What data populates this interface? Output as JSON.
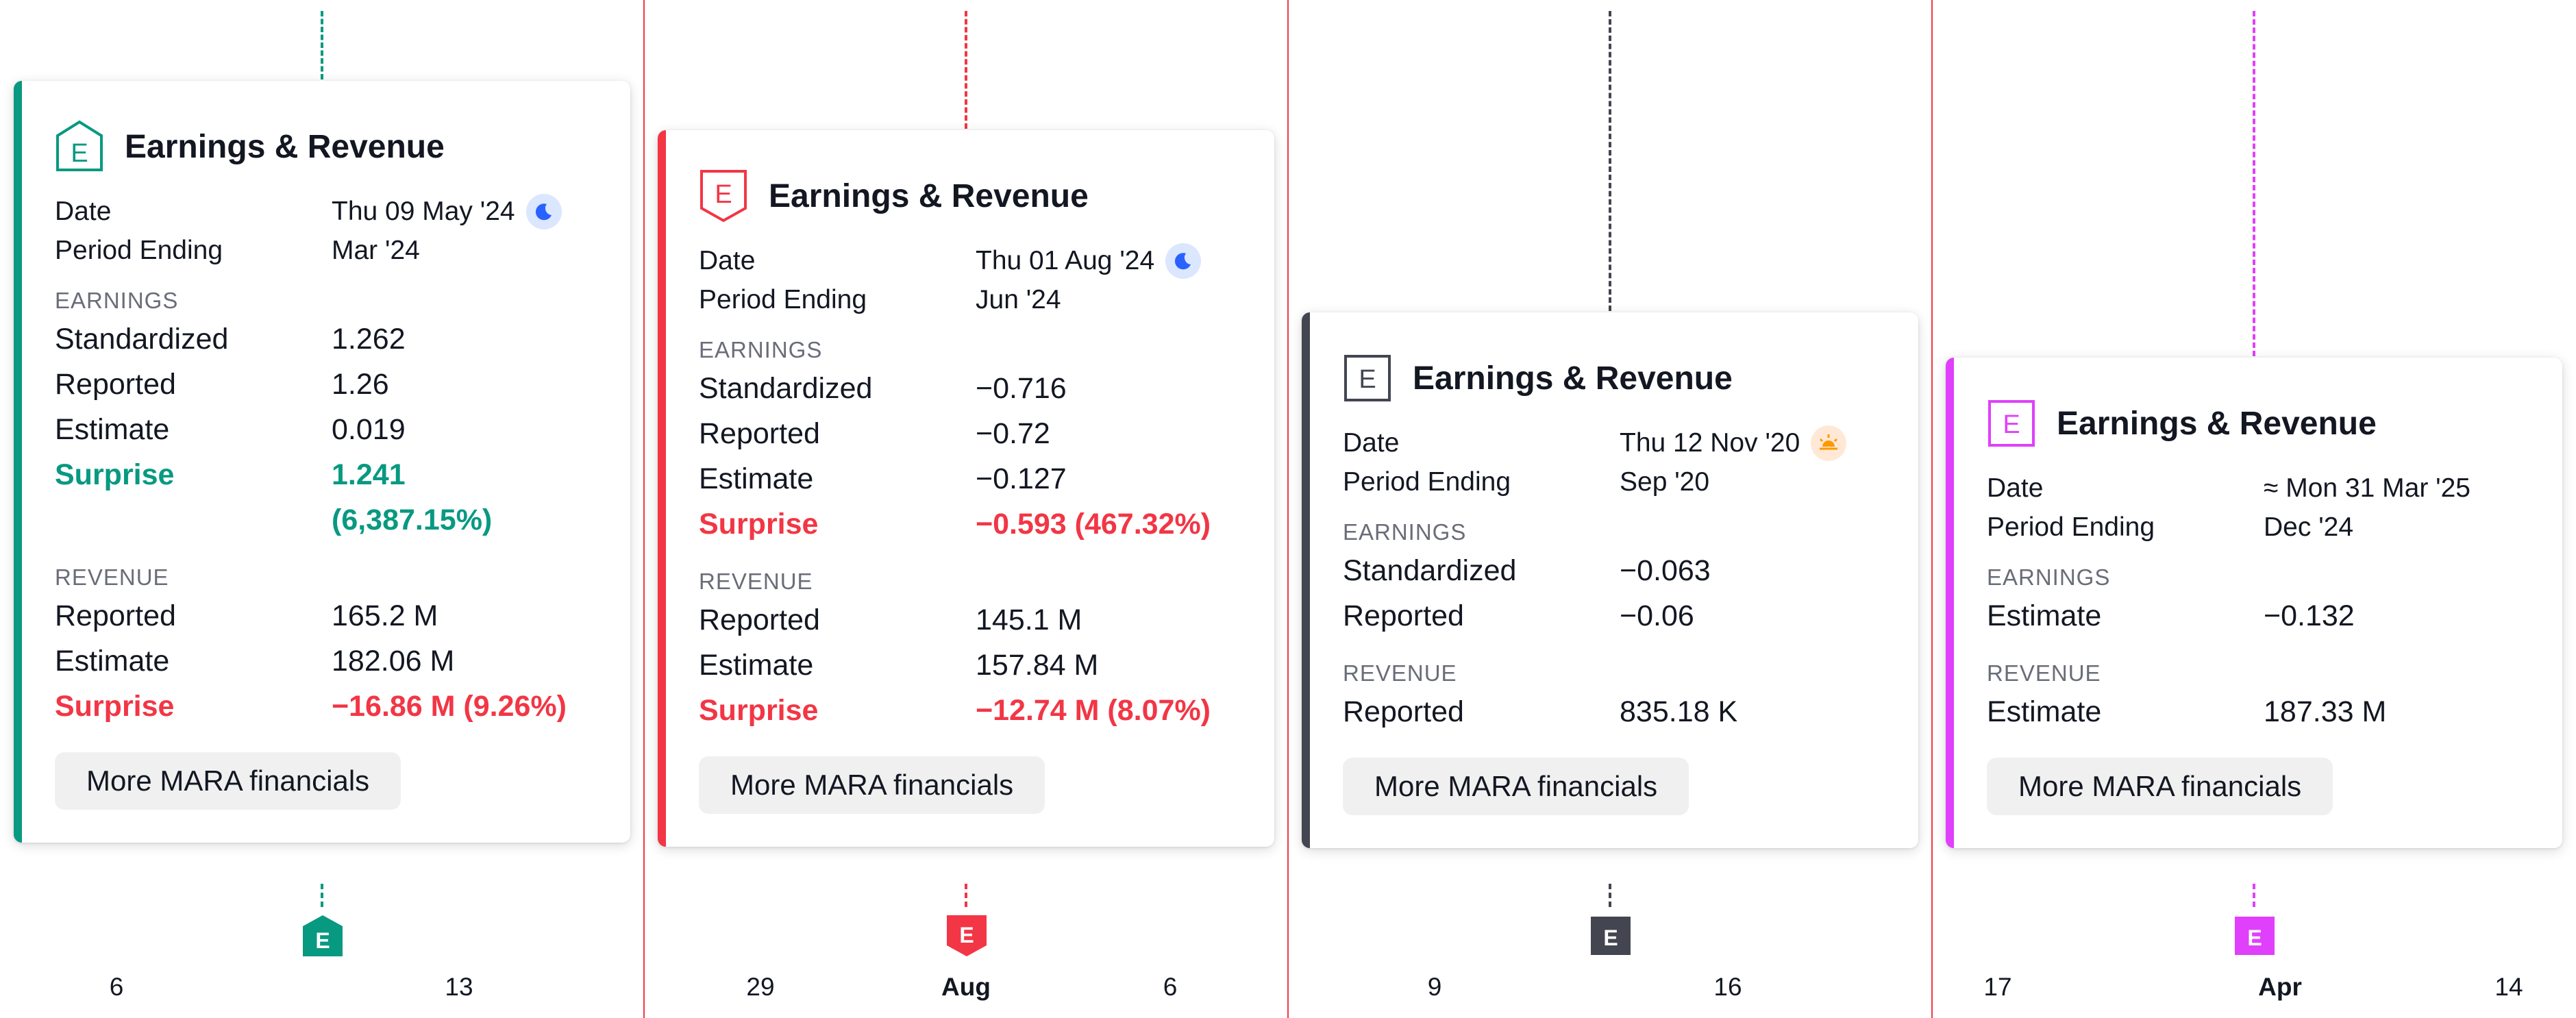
{
  "cards": [
    {
      "title": "Earnings & Revenue",
      "accent": "#089981",
      "icon": "earnings-e-icon",
      "date_label": "Date",
      "date_value": "Thu 09 May '24",
      "time_icon": "moon-icon",
      "period_label": "Period Ending",
      "period_value": "Mar '24",
      "earnings_heading": "EARNINGS",
      "earnings": {
        "standardized_label": "Standardized",
        "standardized": "1.262",
        "reported_label": "Reported",
        "reported": "1.26",
        "estimate_label": "Estimate",
        "estimate": "0.019",
        "surprise_label": "Surprise",
        "surprise_line1": "1.241",
        "surprise_line2": "(6,387.15%)",
        "surprise_color": "#089981"
      },
      "revenue_heading": "REVENUE",
      "revenue": {
        "reported_label": "Reported",
        "reported": "165.2 M",
        "estimate_label": "Estimate",
        "estimate": "182.06 M",
        "surprise_label": "Surprise",
        "surprise": "−16.86 M (9.26%)",
        "surprise_color": "#f23645"
      },
      "button_label": "More MARA financials",
      "marker_letter": "E",
      "axis_ticks": [
        {
          "label": "6"
        },
        {
          "label": "13"
        }
      ]
    },
    {
      "title": "Earnings & Revenue",
      "accent": "#f23645",
      "icon": "earnings-e-icon",
      "date_label": "Date",
      "date_value": "Thu 01 Aug '24",
      "time_icon": "moon-icon",
      "period_label": "Period Ending",
      "period_value": "Jun '24",
      "earnings_heading": "EARNINGS",
      "earnings": {
        "standardized_label": "Standardized",
        "standardized": "−0.716",
        "reported_label": "Reported",
        "reported": "−0.72",
        "estimate_label": "Estimate",
        "estimate": "−0.127",
        "surprise_label": "Surprise",
        "surprise_line1": "−0.593 (467.32%)",
        "surprise_color": "#f23645"
      },
      "revenue_heading": "REVENUE",
      "revenue": {
        "reported_label": "Reported",
        "reported": "145.1 M",
        "estimate_label": "Estimate",
        "estimate": "157.84 M",
        "surprise_label": "Surprise",
        "surprise": "−12.74 M (8.07%)",
        "surprise_color": "#f23645"
      },
      "button_label": "More MARA financials",
      "marker_letter": "E",
      "axis_ticks": [
        {
          "label": "29"
        },
        {
          "label": "Aug"
        },
        {
          "label": "6"
        }
      ]
    },
    {
      "title": "Earnings & Revenue",
      "accent": "#434651",
      "icon": "earnings-e-icon",
      "date_label": "Date",
      "date_value": "Thu 12 Nov '20",
      "time_icon": "sunrise-icon",
      "period_label": "Period Ending",
      "period_value": "Sep '20",
      "earnings_heading": "EARNINGS",
      "earnings": {
        "standardized_label": "Standardized",
        "standardized": "−0.063",
        "reported_label": "Reported",
        "reported": "−0.06"
      },
      "revenue_heading": "REVENUE",
      "revenue": {
        "reported_label": "Reported",
        "reported": "835.18 K"
      },
      "button_label": "More MARA financials",
      "marker_letter": "E",
      "axis_ticks": [
        {
          "label": "9"
        },
        {
          "label": "16"
        }
      ]
    },
    {
      "title": "Earnings & Revenue",
      "accent": "#e040fb",
      "icon": "earnings-e-icon",
      "date_label": "Date",
      "date_value": "≈ Mon 31 Mar '25",
      "period_label": "Period Ending",
      "period_value": "Dec '24",
      "earnings_heading": "EARNINGS",
      "earnings": {
        "estimate_label": "Estimate",
        "estimate": "−0.132"
      },
      "revenue_heading": "REVENUE",
      "revenue": {
        "estimate_label": "Estimate",
        "estimate": "187.33 M"
      },
      "button_label": "More MARA financials",
      "marker_letter": "E",
      "axis_ticks": [
        {
          "label": "17"
        },
        {
          "label": "Apr"
        },
        {
          "label": "14"
        }
      ]
    }
  ]
}
